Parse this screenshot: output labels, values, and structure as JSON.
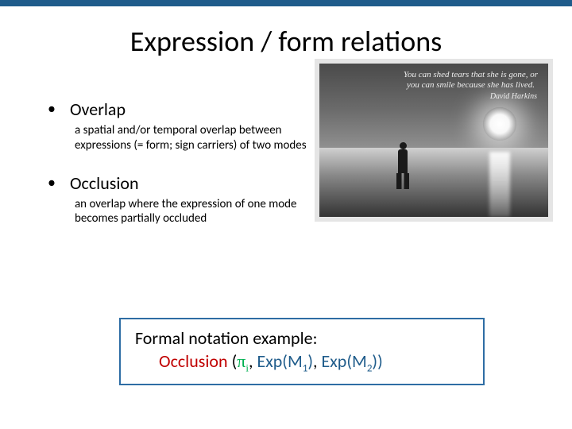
{
  "slide": {
    "title": "Expression / form relations",
    "top_bar_color": "#1f5c8b",
    "background_color": "#ffffff"
  },
  "bullets": [
    {
      "title": "Overlap",
      "desc": "a spatial and/or temporal overlap between expressions (= form; sign carriers) of two modes"
    },
    {
      "title": "Occlusion",
      "desc": "an overlap where the expression of one mode becomes partially occluded"
    }
  ],
  "image": {
    "quote_line": "You can shed tears that she is gone, or you can smile because she has lived.",
    "quote_author": "David Harkins",
    "border_color": "#e5e5e5"
  },
  "notation": {
    "label": "Formal notation example:",
    "occlusion": "Occlusion",
    "open": " (",
    "pi": "π",
    "pi_sub": "i",
    "comma1": ", ",
    "exp1": "Exp(M",
    "exp1_sub": "1",
    "exp1_close": ")",
    "comma2": ", ",
    "exp2": "Exp(M",
    "exp2_sub": "2",
    "exp2_close": "))",
    "border_color": "#2e6da4",
    "colors": {
      "occlusion": "#c00000",
      "pi": "#00b050",
      "exp": "#1f5c8b"
    }
  }
}
